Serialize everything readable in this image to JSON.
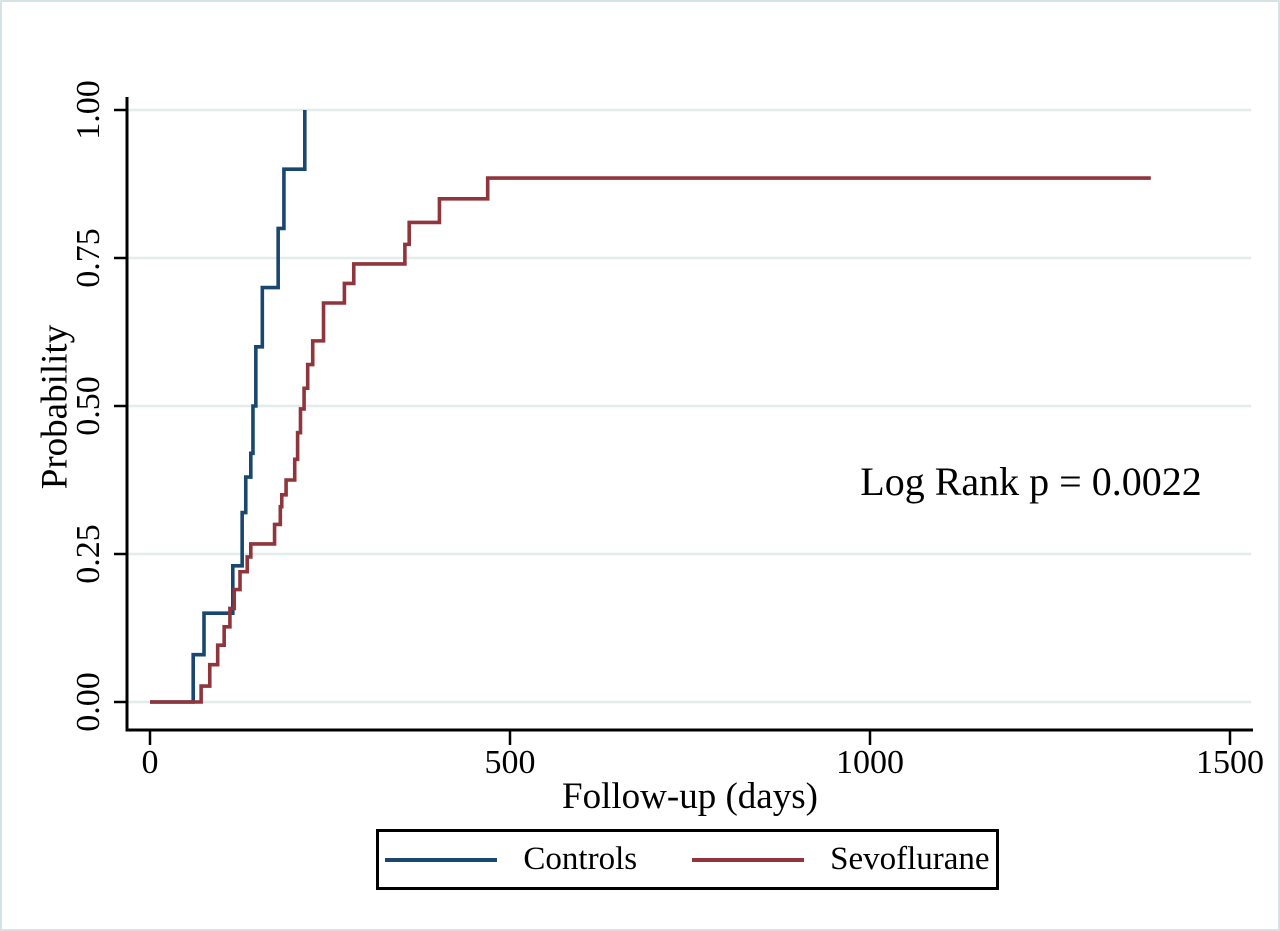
{
  "chart_data": {
    "type": "line",
    "subtype": "kaplan-meier-step-curves",
    "title": "",
    "xlabel": "Follow-up (days)",
    "ylabel": "Probability",
    "xlim": [
      0,
      1500
    ],
    "ylim": [
      0.0,
      1.0
    ],
    "x_ticks": [
      0,
      500,
      1000,
      1500
    ],
    "x_tick_labels": [
      "0",
      "500",
      "1000",
      "1500"
    ],
    "y_ticks": [
      0.0,
      0.25,
      0.5,
      0.75,
      1.0
    ],
    "y_tick_labels": [
      "0.00",
      "0.25",
      "0.50",
      "0.75",
      "1.00"
    ],
    "grid": "horizontal-only",
    "legend_position": "bottom-center-boxed",
    "annotation": "Log Rank p = 0.0022",
    "series": [
      {
        "name": "Controls",
        "color": "#1a476f",
        "step": true,
        "points": [
          [
            0,
            0
          ],
          [
            60,
            0.08
          ],
          [
            75,
            0.15
          ],
          [
            115,
            0.23
          ],
          [
            128,
            0.32
          ],
          [
            133,
            0.38
          ],
          [
            140,
            0.42
          ],
          [
            143,
            0.5
          ],
          [
            147,
            0.6
          ],
          [
            156,
            0.7
          ],
          [
            178,
            0.8
          ],
          [
            186,
            0.9
          ],
          [
            215,
            1.0
          ]
        ]
      },
      {
        "name": "Sevoflurane",
        "color": "#90353b",
        "step": true,
        "points": [
          [
            0,
            0
          ],
          [
            71,
            0.027
          ],
          [
            83,
            0.063
          ],
          [
            94,
            0.096
          ],
          [
            103,
            0.127
          ],
          [
            111,
            0.158
          ],
          [
            117,
            0.19
          ],
          [
            125,
            0.22
          ],
          [
            135,
            0.245
          ],
          [
            140,
            0.267
          ],
          [
            173,
            0.3
          ],
          [
            181,
            0.33
          ],
          [
            183,
            0.35
          ],
          [
            189,
            0.375
          ],
          [
            201,
            0.41
          ],
          [
            205,
            0.455
          ],
          [
            209,
            0.495
          ],
          [
            214,
            0.53
          ],
          [
            219,
            0.57
          ],
          [
            226,
            0.61
          ],
          [
            241,
            0.674
          ],
          [
            270,
            0.707
          ],
          [
            283,
            0.74
          ],
          [
            354,
            0.773
          ],
          [
            360,
            0.81
          ],
          [
            402,
            0.85
          ],
          [
            469,
            0.885
          ],
          [
            1390,
            0.885
          ]
        ]
      }
    ]
  },
  "colors": {
    "background": "#ffffff",
    "figure_border": "#d6e3e5",
    "axis": "#000000",
    "gridline": "#e2ecec",
    "text": "#000000"
  }
}
